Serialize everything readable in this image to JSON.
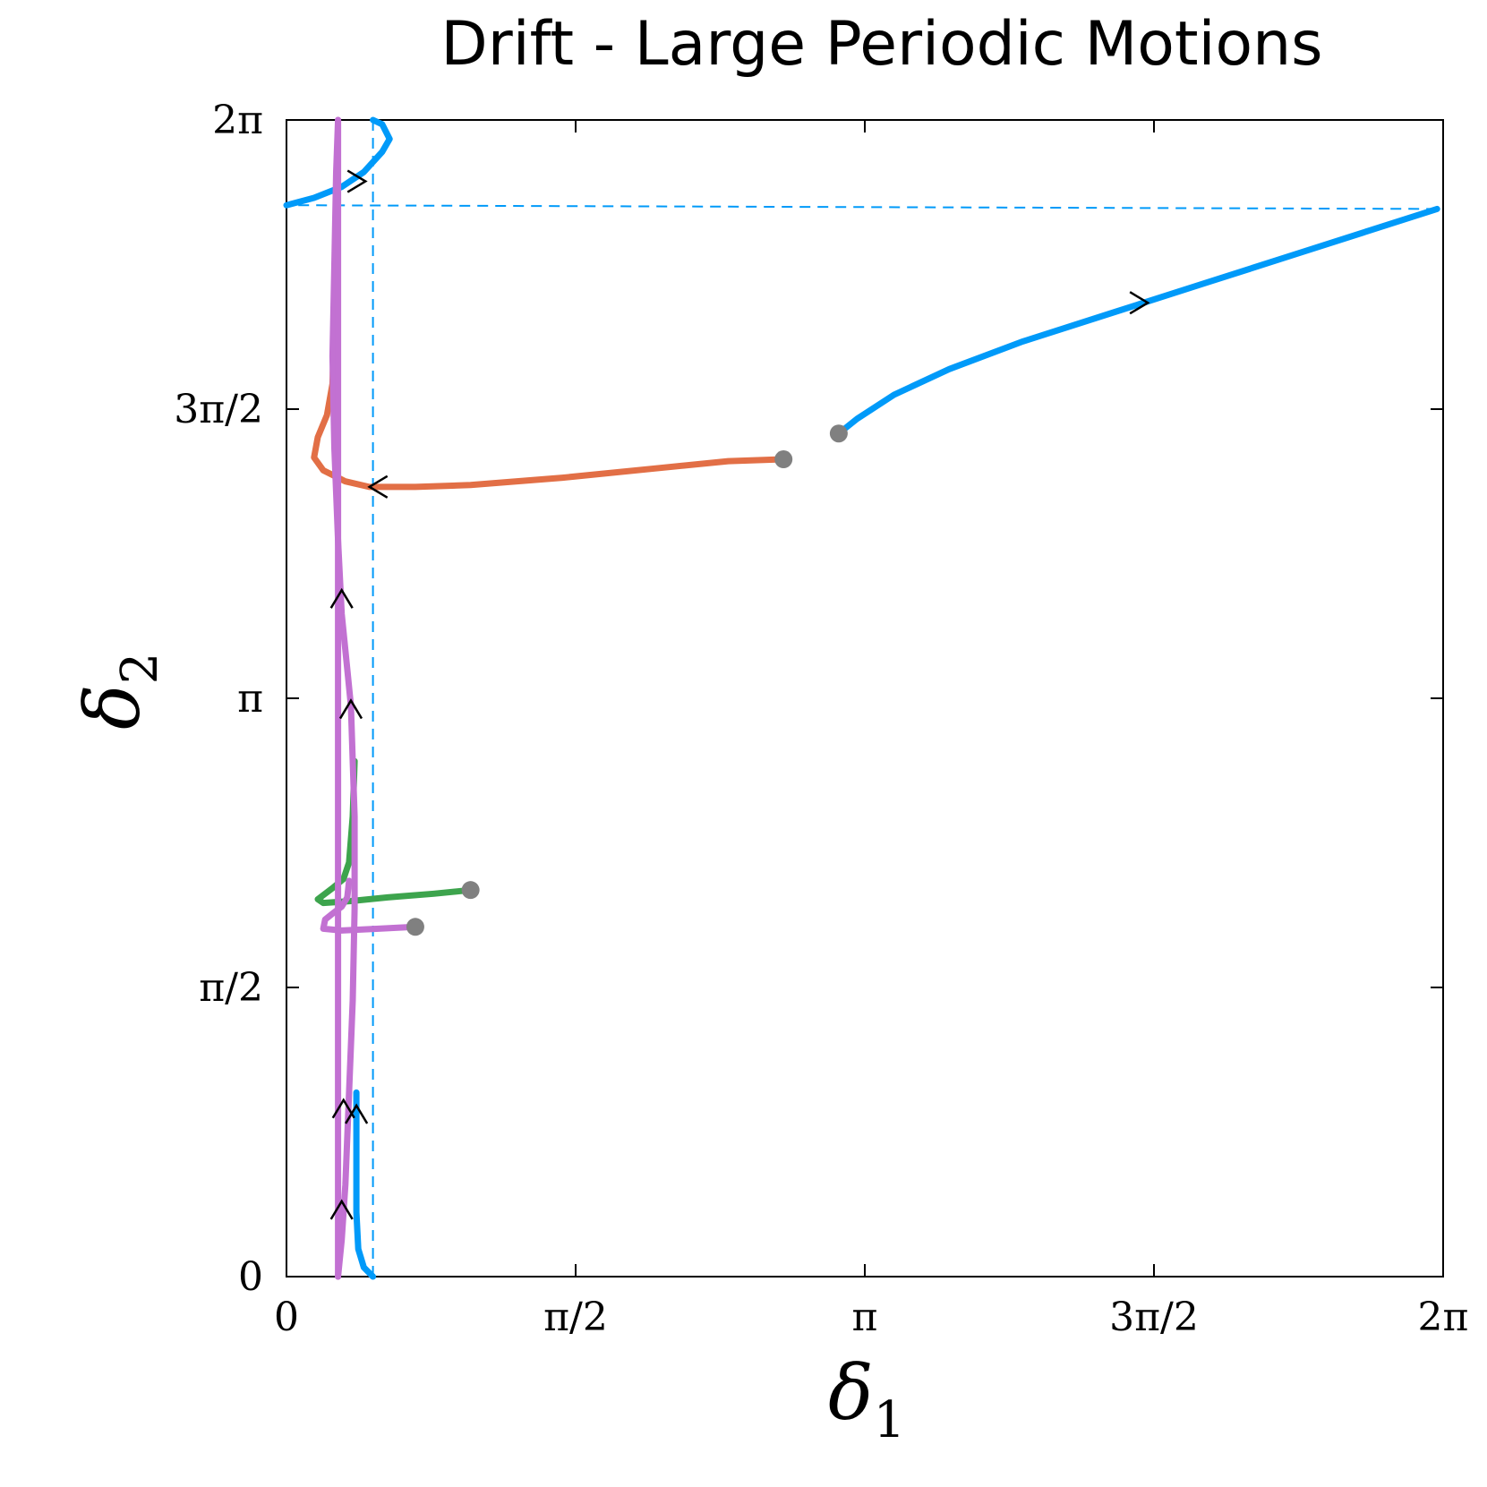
{
  "chart_data": {
    "type": "line",
    "title": "Drift - Large Periodic Motions",
    "xlabel": {
      "symbol": "δ",
      "subscript": "1"
    },
    "ylabel": {
      "symbol": "δ",
      "subscript": "2"
    },
    "xlim": [
      0,
      6.2832
    ],
    "ylim": [
      0,
      6.2832
    ],
    "grid": false,
    "legend": "none",
    "xticks": [
      {
        "value": 0,
        "label": "0"
      },
      {
        "value": 1.5708,
        "label": "π/2"
      },
      {
        "value": 3.1416,
        "label": "π"
      },
      {
        "value": 4.7124,
        "label": "3π/2"
      },
      {
        "value": 6.2832,
        "label": "2π"
      }
    ],
    "yticks": [
      {
        "value": 0,
        "label": "0"
      },
      {
        "value": 1.5708,
        "label": "π/2"
      },
      {
        "value": 3.1416,
        "label": "π"
      },
      {
        "value": 4.7124,
        "label": "3π/2"
      },
      {
        "value": 6.2832,
        "label": "2π"
      }
    ],
    "series": [
      {
        "color": "#009af9",
        "segments": [
          [
            [
              3.0,
              4.58
            ],
            [
              3.1,
              4.66
            ],
            [
              3.3,
              4.79
            ],
            [
              3.6,
              4.93
            ],
            [
              4.0,
              5.08
            ],
            [
              4.5,
              5.24
            ],
            [
              5.0,
              5.4
            ],
            [
              5.5,
              5.56
            ],
            [
              6.0,
              5.72
            ],
            [
              6.25,
              5.8
            ]
          ],
          [
            [
              0.0,
              5.82
            ],
            [
              0.15,
              5.86
            ],
            [
              0.3,
              5.92
            ],
            [
              0.42,
              6.0
            ],
            [
              0.52,
              6.11
            ],
            [
              0.56,
              6.18
            ],
            [
              0.52,
              6.26
            ],
            [
              0.47,
              6.2832
            ]
          ],
          [
            [
              0.47,
              0.0
            ],
            [
              0.42,
              0.05
            ],
            [
              0.39,
              0.15
            ],
            [
              0.38,
              0.35
            ],
            [
              0.38,
              0.6
            ],
            [
              0.38,
              1.0
            ]
          ]
        ],
        "dashed": [
          [
            [
              6.25,
              5.8
            ],
            [
              0.0,
              5.82
            ]
          ],
          [
            [
              0.47,
              6.2832
            ],
            [
              0.47,
              0.0
            ]
          ]
        ],
        "arrows": [
          {
            "x": 4.65,
            "y": 5.29,
            "dir": "right"
          },
          {
            "x": 0.4,
            "y": 5.95,
            "dir": "right"
          },
          {
            "x": 0.38,
            "y": 0.9,
            "dir": "up"
          }
        ]
      },
      {
        "color": "#e26f46",
        "segments": [
          [
            [
              2.7,
              4.44
            ],
            [
              2.4,
              4.43
            ],
            [
              2.0,
              4.39
            ],
            [
              1.5,
              4.34
            ],
            [
              1.0,
              4.3
            ],
            [
              0.7,
              4.29
            ],
            [
              0.45,
              4.29
            ],
            [
              0.32,
              4.32
            ],
            [
              0.2,
              4.38
            ],
            [
              0.15,
              4.45
            ],
            [
              0.17,
              4.56
            ],
            [
              0.22,
              4.68
            ],
            [
              0.25,
              4.85
            ],
            [
              0.26,
              5.2
            ],
            [
              0.26,
              5.5
            ]
          ]
        ],
        "arrows": [
          {
            "x": 0.48,
            "y": 4.29,
            "dir": "left"
          }
        ]
      },
      {
        "color": "#3da44d",
        "segments": [
          [
            [
              1.0,
              2.1
            ],
            [
              0.8,
              2.08
            ],
            [
              0.55,
              2.06
            ],
            [
              0.35,
              2.04
            ],
            [
              0.2,
              2.03
            ],
            [
              0.17,
              2.05
            ],
            [
              0.25,
              2.11
            ],
            [
              0.31,
              2.16
            ],
            [
              0.34,
              2.25
            ],
            [
              0.36,
              2.5
            ],
            [
              0.37,
              2.8
            ]
          ]
        ],
        "arrows": []
      },
      {
        "color": "#c271d2",
        "segments": [
          [
            [
              0.28,
              6.2832
            ],
            [
              0.27,
              6.0
            ],
            [
              0.26,
              5.5
            ],
            [
              0.25,
              5.0
            ],
            [
              0.26,
              4.5
            ],
            [
              0.28,
              4.0
            ],
            [
              0.3,
              3.6
            ],
            [
              0.33,
              3.3
            ],
            [
              0.35,
              3.1
            ],
            [
              0.36,
              2.8
            ],
            [
              0.37,
              2.5
            ],
            [
              0.37,
              2.2
            ],
            [
              0.37,
              2.0
            ],
            [
              0.36,
              1.5
            ],
            [
              0.34,
              1.0
            ],
            [
              0.32,
              0.5
            ],
            [
              0.3,
              0.2
            ],
            [
              0.28,
              0.0
            ]
          ],
          [
            [
              0.7,
              1.9
            ],
            [
              0.5,
              1.89
            ],
            [
              0.3,
              1.88
            ],
            [
              0.2,
              1.89
            ],
            [
              0.21,
              1.94
            ],
            [
              0.26,
              1.98
            ],
            [
              0.3,
              2.01
            ],
            [
              0.33,
              2.06
            ],
            [
              0.34,
              2.15
            ]
          ],
          [
            [
              0.28,
              0.0
            ],
            [
              0.28,
              2.4
            ],
            [
              0.28,
              4.0
            ],
            [
              0.28,
              6.2832
            ]
          ]
        ],
        "arrows": [
          {
            "x": 0.3,
            "y": 0.38,
            "dir": "up"
          },
          {
            "x": 0.31,
            "y": 0.93,
            "dir": "up"
          },
          {
            "x": 0.35,
            "y": 3.1,
            "dir": "up"
          },
          {
            "x": 0.3,
            "y": 3.7,
            "dir": "up"
          }
        ]
      }
    ],
    "start_points": [
      {
        "x": 3.0,
        "y": 4.58
      },
      {
        "x": 2.7,
        "y": 4.44
      },
      {
        "x": 1.0,
        "y": 2.1
      },
      {
        "x": 0.7,
        "y": 1.9
      }
    ],
    "start_point_color": "#808080"
  }
}
